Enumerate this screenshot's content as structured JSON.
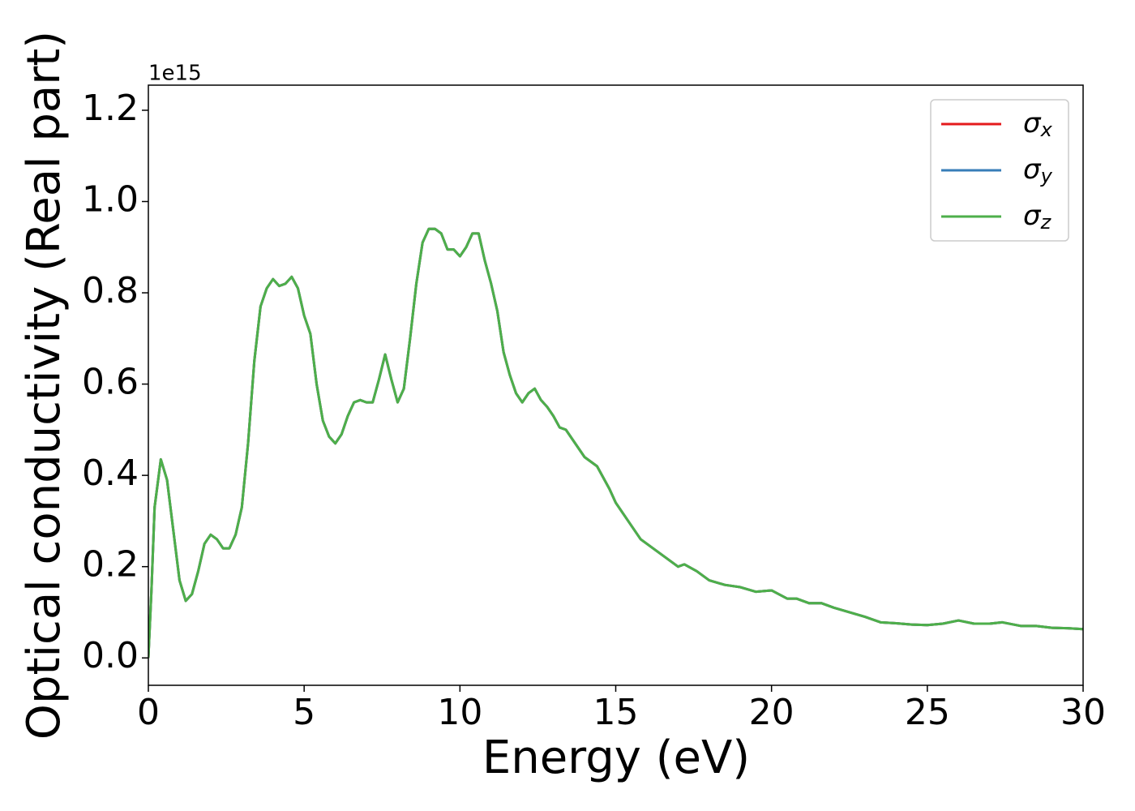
{
  "chart_data": {
    "type": "line",
    "xlabel": "Energy (eV)",
    "ylabel": "Optical conductivity (Real part)",
    "y_offset_label": "1e15",
    "x": [
      0,
      0.1,
      0.2,
      0.4,
      0.6,
      0.8,
      1.0,
      1.2,
      1.4,
      1.6,
      1.8,
      2.0,
      2.2,
      2.4,
      2.6,
      2.8,
      3.0,
      3.2,
      3.4,
      3.6,
      3.8,
      4.0,
      4.2,
      4.4,
      4.6,
      4.8,
      5.0,
      5.2,
      5.4,
      5.6,
      5.8,
      6.0,
      6.2,
      6.4,
      6.6,
      6.8,
      7.0,
      7.2,
      7.4,
      7.6,
      7.8,
      8.0,
      8.2,
      8.4,
      8.6,
      8.8,
      9.0,
      9.2,
      9.4,
      9.6,
      9.8,
      10.0,
      10.2,
      10.4,
      10.6,
      10.8,
      11.0,
      11.2,
      11.4,
      11.6,
      11.8,
      12.0,
      12.2,
      12.4,
      12.6,
      12.8,
      13.0,
      13.2,
      13.4,
      13.6,
      13.8,
      14.0,
      14.4,
      14.8,
      15.0,
      15.4,
      15.8,
      16.2,
      16.6,
      17.0,
      17.2,
      17.6,
      18.0,
      18.5,
      19.0,
      19.5,
      20.0,
      20.5,
      20.8,
      21.2,
      21.6,
      22.0,
      22.5,
      23.0,
      23.5,
      24.0,
      24.5,
      25.0,
      25.5,
      26.0,
      26.5,
      27.0,
      27.4,
      28.0,
      28.5,
      29.0,
      29.5,
      30.0
    ],
    "series": [
      {
        "name": "σx",
        "color": "#e41a1c",
        "values": [
          0,
          0.15,
          0.33,
          0.435,
          0.39,
          0.28,
          0.17,
          0.125,
          0.14,
          0.19,
          0.25,
          0.27,
          0.26,
          0.24,
          0.24,
          0.27,
          0.33,
          0.47,
          0.65,
          0.77,
          0.81,
          0.83,
          0.815,
          0.82,
          0.835,
          0.81,
          0.75,
          0.71,
          0.6,
          0.52,
          0.485,
          0.47,
          0.49,
          0.53,
          0.56,
          0.565,
          0.56,
          0.56,
          0.61,
          0.665,
          0.61,
          0.56,
          0.59,
          0.7,
          0.82,
          0.91,
          0.94,
          0.94,
          0.93,
          0.895,
          0.895,
          0.88,
          0.9,
          0.93,
          0.93,
          0.87,
          0.82,
          0.76,
          0.67,
          0.62,
          0.58,
          0.56,
          0.58,
          0.59,
          0.565,
          0.55,
          0.53,
          0.505,
          0.5,
          0.48,
          0.46,
          0.44,
          0.42,
          0.37,
          0.34,
          0.3,
          0.26,
          0.24,
          0.22,
          0.2,
          0.205,
          0.19,
          0.17,
          0.16,
          0.155,
          0.145,
          0.148,
          0.13,
          0.13,
          0.12,
          0.12,
          0.11,
          0.1,
          0.09,
          0.078,
          0.076,
          0.073,
          0.072,
          0.075,
          0.082,
          0.075,
          0.075,
          0.078,
          0.07,
          0.07,
          0.066,
          0.065,
          0.063
        ]
      },
      {
        "name": "σy",
        "color": "#377eb8",
        "values": [
          0,
          0.15,
          0.33,
          0.435,
          0.39,
          0.28,
          0.17,
          0.125,
          0.14,
          0.19,
          0.25,
          0.27,
          0.26,
          0.24,
          0.24,
          0.27,
          0.33,
          0.47,
          0.65,
          0.77,
          0.81,
          0.83,
          0.815,
          0.82,
          0.835,
          0.81,
          0.75,
          0.71,
          0.6,
          0.52,
          0.485,
          0.47,
          0.49,
          0.53,
          0.56,
          0.565,
          0.56,
          0.56,
          0.61,
          0.665,
          0.61,
          0.56,
          0.59,
          0.7,
          0.82,
          0.91,
          0.94,
          0.94,
          0.93,
          0.895,
          0.895,
          0.88,
          0.9,
          0.93,
          0.93,
          0.87,
          0.82,
          0.76,
          0.67,
          0.62,
          0.58,
          0.56,
          0.58,
          0.59,
          0.565,
          0.55,
          0.53,
          0.505,
          0.5,
          0.48,
          0.46,
          0.44,
          0.42,
          0.37,
          0.34,
          0.3,
          0.26,
          0.24,
          0.22,
          0.2,
          0.205,
          0.19,
          0.17,
          0.16,
          0.155,
          0.145,
          0.148,
          0.13,
          0.13,
          0.12,
          0.12,
          0.11,
          0.1,
          0.09,
          0.078,
          0.076,
          0.073,
          0.072,
          0.075,
          0.082,
          0.075,
          0.075,
          0.078,
          0.07,
          0.07,
          0.066,
          0.065,
          0.063
        ]
      },
      {
        "name": "σz",
        "color": "#4daf4a",
        "values": [
          0,
          0.15,
          0.33,
          0.435,
          0.39,
          0.28,
          0.17,
          0.125,
          0.14,
          0.19,
          0.25,
          0.27,
          0.26,
          0.24,
          0.24,
          0.27,
          0.33,
          0.47,
          0.65,
          0.77,
          0.81,
          0.83,
          0.815,
          0.82,
          0.835,
          0.81,
          0.75,
          0.71,
          0.6,
          0.52,
          0.485,
          0.47,
          0.49,
          0.53,
          0.56,
          0.565,
          0.56,
          0.56,
          0.61,
          0.665,
          0.61,
          0.56,
          0.59,
          0.7,
          0.82,
          0.91,
          0.94,
          0.94,
          0.93,
          0.895,
          0.895,
          0.88,
          0.9,
          0.93,
          0.93,
          0.87,
          0.82,
          0.76,
          0.67,
          0.62,
          0.58,
          0.56,
          0.58,
          0.59,
          0.565,
          0.55,
          0.53,
          0.505,
          0.5,
          0.48,
          0.46,
          0.44,
          0.42,
          0.37,
          0.34,
          0.3,
          0.26,
          0.24,
          0.22,
          0.2,
          0.205,
          0.19,
          0.17,
          0.16,
          0.155,
          0.145,
          0.148,
          0.13,
          0.13,
          0.12,
          0.12,
          0.11,
          0.1,
          0.09,
          0.078,
          0.076,
          0.073,
          0.072,
          0.075,
          0.082,
          0.075,
          0.075,
          0.078,
          0.07,
          0.07,
          0.066,
          0.065,
          0.063
        ]
      }
    ],
    "xlim": [
      0,
      30
    ],
    "xticks": [
      0,
      5,
      10,
      15,
      20,
      25,
      30
    ],
    "ylim": [
      -0.06,
      1.255
    ],
    "yticks": [
      {
        "value": 0,
        "label": "0.0"
      },
      0.2,
      0.4,
      0.6,
      0.8,
      {
        "value": 1,
        "label": "1.0"
      },
      1.2
    ],
    "grid": false,
    "legend": "upper right"
  }
}
